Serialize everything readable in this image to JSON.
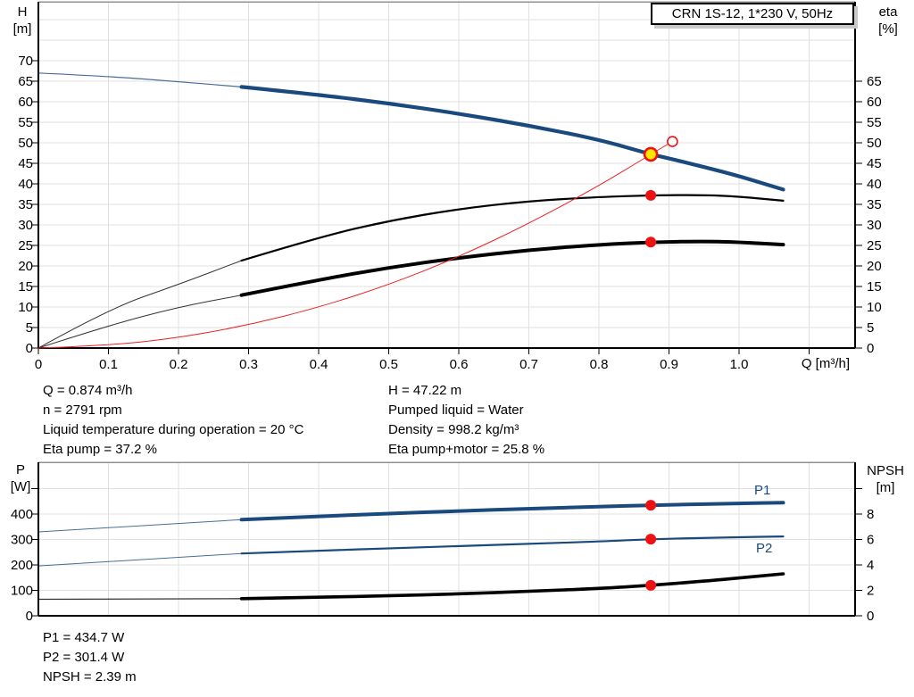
{
  "title_box": "CRN 1S-12, 1*230 V, 50Hz",
  "colors": {
    "curve_blue": "#1a4a7d",
    "curve_black": "#000000",
    "curve_red": "#ee2020",
    "marker_red": "#ee1111",
    "marker_yellow": "#ffe600",
    "grid": "#e0e0e0",
    "frame_gray": "#909090",
    "axis_black": "#000000"
  },
  "axis_titles": {
    "h": [
      "H",
      "[m]"
    ],
    "eta": [
      "eta",
      "[%]"
    ],
    "p": [
      "P",
      "[W]"
    ],
    "npsh": [
      "NPSH",
      "[m]"
    ],
    "q": "Q [m³/h]"
  },
  "info_top_left": [
    "Q = 0.874 m³/h",
    "n = 2791 rpm",
    "Liquid temperature during operation = 20 °C",
    "Eta pump = 37.2 %"
  ],
  "info_top_right": [
    "H = 47.22 m",
    "Pumped liquid = Water",
    "Density = 998.2 kg/m³",
    "Eta pump+motor = 25.8 %"
  ],
  "info_bottom": [
    "P1 = 434.7 W",
    "P2 = 301.4 W",
    "NPSH = 2.39 m"
  ],
  "chart_data": [
    {
      "type": "line",
      "title": "CRN 1S-12, 1*230 V, 50Hz",
      "xlabel": "Q [m³/h]",
      "ylabel_left": "H [m]",
      "ylabel_right": "eta [%]",
      "xlim": [
        0,
        1.166
      ],
      "ylim_left": [
        0,
        83
      ],
      "ylim_right": [
        0,
        83
      ],
      "grid": true,
      "xticks": {
        "values": [
          0,
          0.1,
          0.2,
          0.3,
          0.4,
          0.5,
          0.6,
          0.7,
          0.8,
          0.9,
          1.0,
          1.1
        ],
        "labels": [
          "0",
          "0.1",
          "0.2",
          "0.3",
          "0.4",
          "0.5",
          "0.6",
          "0.7",
          "0.8",
          "0.9",
          "1.0",
          ""
        ]
      },
      "yticks_left": {
        "values": [
          0,
          5,
          10,
          15,
          20,
          25,
          30,
          35,
          40,
          45,
          50,
          55,
          60,
          65,
          70
        ],
        "labels": [
          "0",
          "5",
          "10",
          "15",
          "20",
          "25",
          "30",
          "35",
          "40",
          "45",
          "50",
          "55",
          "60",
          "65",
          "70"
        ]
      },
      "yticks_right": {
        "values": [
          0,
          5,
          10,
          15,
          20,
          25,
          30,
          35,
          40,
          45,
          50,
          55,
          60,
          65
        ],
        "labels": [
          "0",
          "5",
          "10",
          "15",
          "20",
          "25",
          "30",
          "35",
          "40",
          "45",
          "50",
          "55",
          "60",
          "65"
        ]
      },
      "series": [
        {
          "name": "eta-pump",
          "axis": "left",
          "color": "black",
          "split": 0.29,
          "width_thin": 1,
          "width": 2.2,
          "points": [
            [
              0,
              0
            ],
            [
              0.1,
              9.5
            ],
            [
              0.2,
              15.5
            ],
            [
              0.29,
              21.3
            ],
            [
              0.4,
              27.0
            ],
            [
              0.5,
              31.0
            ],
            [
              0.6,
              33.9
            ],
            [
              0.7,
              35.8
            ],
            [
              0.8,
              36.8
            ],
            [
              0.874,
              37.2
            ],
            [
              0.95,
              37.3
            ],
            [
              1.0,
              36.9
            ],
            [
              1.063,
              35.9
            ]
          ]
        },
        {
          "name": "eta-pump-motor",
          "axis": "left",
          "color": "black",
          "split": 0.29,
          "width_thin": 1,
          "width": 4,
          "points": [
            [
              0,
              0
            ],
            [
              0.1,
              5.5
            ],
            [
              0.2,
              10.0
            ],
            [
              0.29,
              12.9
            ],
            [
              0.4,
              16.6
            ],
            [
              0.5,
              19.6
            ],
            [
              0.6,
              22.0
            ],
            [
              0.7,
              23.9
            ],
            [
              0.8,
              25.2
            ],
            [
              0.874,
              25.8
            ],
            [
              0.95,
              26.0
            ],
            [
              1.0,
              25.8
            ],
            [
              1.063,
              25.2
            ]
          ]
        },
        {
          "name": "system-curve",
          "axis": "left",
          "color": "red",
          "split": null,
          "width_thin": 1,
          "width": 1,
          "points": [
            [
              0,
              0
            ],
            [
              0.1,
              0.6
            ],
            [
              0.2,
              2.5
            ],
            [
              0.3,
              5.6
            ],
            [
              0.4,
              9.9
            ],
            [
              0.5,
              15.4
            ],
            [
              0.6,
              22.2
            ],
            [
              0.7,
              30.3
            ],
            [
              0.8,
              39.5
            ],
            [
              0.874,
              47.2
            ],
            [
              0.905,
              50.3
            ]
          ]
        },
        {
          "name": "head",
          "axis": "left",
          "color": "blue",
          "split": 0.29,
          "width_thin": 1.2,
          "width": 4.2,
          "points": [
            [
              0,
              67.0
            ],
            [
              0.1,
              66.2
            ],
            [
              0.2,
              64.9
            ],
            [
              0.29,
              63.6
            ],
            [
              0.4,
              61.7
            ],
            [
              0.5,
              59.6
            ],
            [
              0.6,
              57.1
            ],
            [
              0.7,
              54.2
            ],
            [
              0.8,
              50.8
            ],
            [
              0.874,
              47.2
            ],
            [
              0.9,
              46.2
            ],
            [
              0.95,
              44.1
            ],
            [
              1.0,
              41.9
            ],
            [
              1.063,
              38.6
            ]
          ]
        }
      ],
      "markers": [
        {
          "name": "rated-point",
          "x": 0.905,
          "y": 50.3,
          "axis": "left",
          "style": "open-red"
        },
        {
          "name": "eta-pump-point",
          "x": 0.874,
          "y": 37.2,
          "axis": "left",
          "style": "red-dot"
        },
        {
          "name": "eta-pump-motor-point",
          "x": 0.874,
          "y": 25.8,
          "axis": "left",
          "style": "red-dot"
        },
        {
          "name": "duty-point",
          "x": 0.874,
          "y": 47.2,
          "axis": "left",
          "style": "duty-yellow"
        }
      ]
    },
    {
      "type": "line",
      "xlabel": "",
      "ylabel_left": "P [W]",
      "ylabel_right": "NPSH [m]",
      "xlim": [
        0,
        1.166
      ],
      "ylim_left": [
        0,
        603
      ],
      "ylim_right": [
        0,
        12.06
      ],
      "grid": true,
      "xticks": {
        "values": [],
        "labels": []
      },
      "yticks_left": {
        "values": [
          0,
          100,
          200,
          300,
          400,
          500
        ],
        "labels": [
          "0",
          "100",
          "200",
          "300",
          "400",
          ""
        ]
      },
      "yticks_right": {
        "values": [
          0,
          2,
          4,
          6,
          8,
          10
        ],
        "labels": [
          "0",
          "2",
          "4",
          "6",
          "8",
          ""
        ]
      },
      "series": [
        {
          "name": "P1",
          "axis": "left",
          "color": "blue",
          "split": 0.29,
          "width_thin": 1,
          "width": 4,
          "points": [
            [
              0,
              330
            ],
            [
              0.29,
              378
            ],
            [
              0.4,
              391
            ],
            [
              0.5,
              402
            ],
            [
              0.6,
              412
            ],
            [
              0.7,
              421
            ],
            [
              0.8,
              429
            ],
            [
              0.874,
              434.7
            ],
            [
              0.95,
              439
            ],
            [
              1.0,
              442
            ],
            [
              1.063,
              445
            ]
          ]
        },
        {
          "name": "P2",
          "axis": "left",
          "color": "blue",
          "split": 0.29,
          "width_thin": 1,
          "width": 2.2,
          "points": [
            [
              0,
              196
            ],
            [
              0.29,
              245
            ],
            [
              0.4,
              256
            ],
            [
              0.5,
              265
            ],
            [
              0.6,
              274
            ],
            [
              0.7,
              283
            ],
            [
              0.8,
              292
            ],
            [
              0.874,
              301.4
            ],
            [
              0.95,
              306
            ],
            [
              1.0,
              309
            ],
            [
              1.063,
              312
            ]
          ]
        },
        {
          "name": "NPSH",
          "axis": "right",
          "color": "black",
          "split": 0.29,
          "width_thin": 1.3,
          "width": 3.6,
          "points": [
            [
              0,
              1.3
            ],
            [
              0.29,
              1.35
            ],
            [
              0.4,
              1.45
            ],
            [
              0.5,
              1.57
            ],
            [
              0.6,
              1.72
            ],
            [
              0.7,
              1.92
            ],
            [
              0.8,
              2.15
            ],
            [
              0.874,
              2.39
            ],
            [
              0.95,
              2.72
            ],
            [
              1.0,
              2.97
            ],
            [
              1.063,
              3.3
            ]
          ]
        }
      ],
      "markers": [
        {
          "name": "p1-point",
          "x": 0.874,
          "y": 434.7,
          "axis": "left",
          "style": "red-dot"
        },
        {
          "name": "p2-point",
          "x": 0.874,
          "y": 301.4,
          "axis": "left",
          "style": "red-dot"
        },
        {
          "name": "npsh-point",
          "x": 0.874,
          "y": 2.39,
          "axis": "right",
          "style": "red-dot"
        }
      ],
      "series_labels": {
        "p1": "P1",
        "p2": "P2"
      }
    }
  ]
}
